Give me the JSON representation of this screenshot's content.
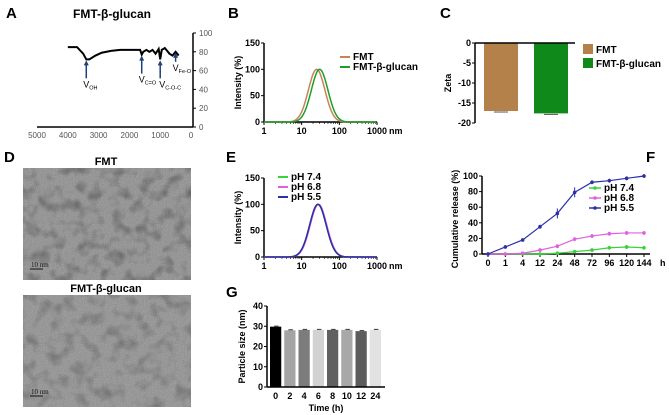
{
  "chart_data": [
    {
      "panel": "A",
      "type": "line",
      "title": "FMT-β-glucan",
      "xlim": [
        5000,
        0
      ],
      "ylim": [
        0,
        100
      ],
      "xticks": [
        "5000",
        "4000",
        "3000",
        "2000",
        "1000",
        "0"
      ],
      "yticks": [
        "0",
        "20",
        "40",
        "60",
        "80",
        "100"
      ],
      "x": [
        4000,
        3700,
        3500,
        3400,
        3300,
        3100,
        2900,
        2600,
        2300,
        2000,
        1800,
        1650,
        1600,
        1550,
        1450,
        1350,
        1250,
        1150,
        1050,
        1000,
        950,
        850,
        700,
        600,
        500,
        450,
        400
      ],
      "y": [
        85,
        85,
        78,
        72,
        72,
        76,
        79,
        81,
        82,
        82,
        82,
        82,
        77,
        80,
        82,
        80,
        82,
        78,
        83,
        72,
        82,
        84,
        78,
        76,
        80,
        78,
        76
      ],
      "annotations": [
        {
          "label": "V",
          "sub": "OH",
          "x": 3400
        },
        {
          "label": "V",
          "sub": "C=O",
          "x": 1600
        },
        {
          "label": "V",
          "sub": "C-O-C",
          "x": 1000
        },
        {
          "label": "V",
          "sub": "Fe-O",
          "x": 500
        }
      ],
      "color": "#000000"
    },
    {
      "panel": "B",
      "type": "line",
      "xscale": "log",
      "xlim": [
        1,
        1000
      ],
      "ylim": [
        0,
        150
      ],
      "xunit": "nm",
      "ylabel": "Intensity (%)",
      "xticks": [
        "1",
        "10",
        "100",
        "1000"
      ],
      "yticks": [
        "0",
        "50",
        "100",
        "150"
      ],
      "legend": "top-right",
      "series": [
        {
          "name": "FMT",
          "peak_nm": 25,
          "peak": 100,
          "color": "#c9825a"
        },
        {
          "name": "FMT-β-glucan",
          "peak_nm": 30,
          "peak": 100,
          "color": "#1f9e2a"
        }
      ]
    },
    {
      "panel": "C",
      "type": "bar",
      "ylabel": "Zeta",
      "ylim": [
        -20,
        0
      ],
      "yticks": [
        "0",
        "-5",
        "-10",
        "-15",
        "-20"
      ],
      "legend": "right",
      "categories": [
        "FMT",
        "FMT-β-glucan"
      ],
      "values": [
        -17,
        -17.6
      ],
      "colors": [
        "#b5814a",
        "#0f8a1a"
      ]
    },
    {
      "panel": "E",
      "type": "line",
      "xscale": "log",
      "xlim": [
        1,
        1000
      ],
      "ylim": [
        0,
        150
      ],
      "xunit": "nm",
      "ylabel": "Intensity (%)",
      "xticks": [
        "1",
        "10",
        "100",
        "1000"
      ],
      "yticks": [
        "0",
        "50",
        "100",
        "150"
      ],
      "legend": "top-left",
      "series": [
        {
          "name": "pH 7.4",
          "peak_nm": 27,
          "peak": 100,
          "color": "#3ad23a"
        },
        {
          "name": "pH 6.8",
          "peak_nm": 28,
          "peak": 100,
          "color": "#e060e0"
        },
        {
          "name": "pH 5.5",
          "peak_nm": 27,
          "peak": 100,
          "color": "#2b2fa8"
        }
      ]
    },
    {
      "panel": "F",
      "type": "line",
      "ylabel": "Cumulative release (%)",
      "xunit": "h",
      "ylim": [
        0,
        100
      ],
      "yticks": [
        "0",
        "20",
        "40",
        "60",
        "80",
        "100"
      ],
      "legend": "right",
      "categories": [
        "0",
        "1",
        "4",
        "12",
        "24",
        "48",
        "72",
        "96",
        "120",
        "144"
      ],
      "series": [
        {
          "name": "pH 7.4",
          "values": [
            0,
            0,
            0,
            0,
            1,
            3,
            5,
            8,
            9,
            8
          ],
          "color": "#3ad23a"
        },
        {
          "name": "pH 6.8",
          "values": [
            0,
            0,
            1,
            5,
            10,
            19,
            23,
            26,
            27,
            27
          ],
          "color": "#e060e0"
        },
        {
          "name": "pH 5.5",
          "values": [
            0,
            9,
            18,
            35,
            52,
            79,
            92,
            94,
            97,
            100
          ],
          "color": "#2b2fa8"
        }
      ]
    },
    {
      "panel": "G",
      "type": "bar",
      "xlabel": "Time (h)",
      "ylabel": "Particle size (nm)",
      "ylim": [
        0,
        40
      ],
      "yticks": [
        "0",
        "10",
        "20",
        "30",
        "40"
      ],
      "categories": [
        "0",
        "2",
        "4",
        "6",
        "8",
        "10",
        "12",
        "24"
      ],
      "values": [
        29.8,
        28,
        28.2,
        28.2,
        28.2,
        28.2,
        27.6,
        28.2
      ],
      "colors": [
        "#000000",
        "#a4a4a4",
        "#7c7c7c",
        "#d2d2d2",
        "#606060",
        "#a8a8a8",
        "#5c5c5c",
        "#e2e2e2"
      ]
    }
  ],
  "panel_labels": [
    "A",
    "B",
    "C",
    "D",
    "E",
    "F",
    "G"
  ],
  "panelD": {
    "titles": [
      "FMT",
      "FMT-β-glucan"
    ],
    "scale_bar": "10 nm"
  }
}
